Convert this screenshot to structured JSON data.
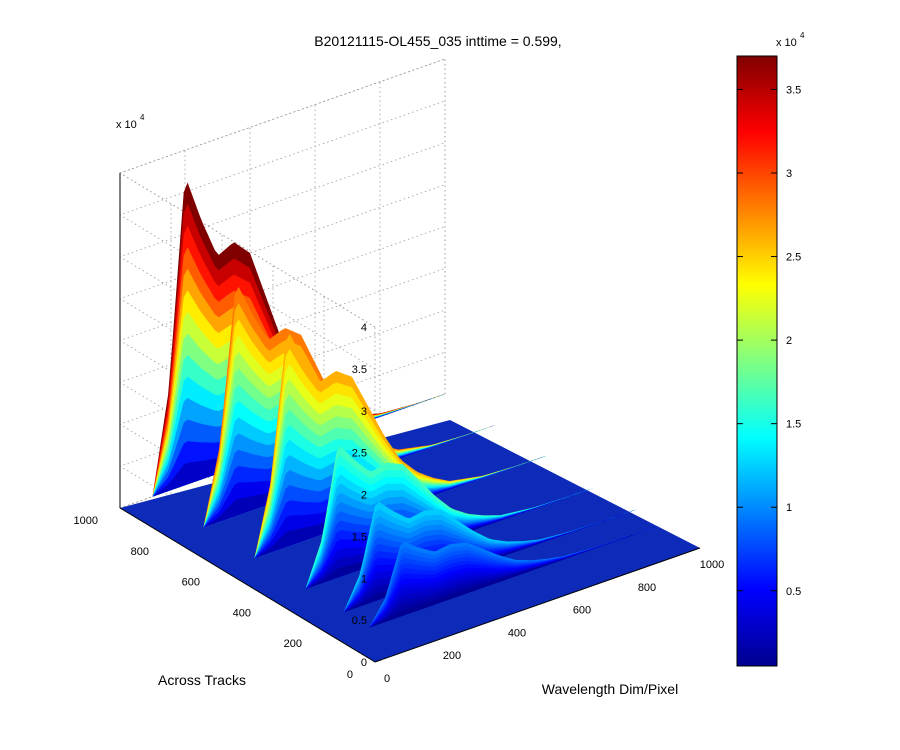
{
  "chart_data": {
    "type": "surface",
    "title": "B20121115-OL455_035 inttime = 0.599,",
    "xlabel": "Wavelength Dim/Pixel",
    "ylabel": "Across Tracks",
    "zlabel": "",
    "z_exponent": "x 10",
    "z_exponent_power": "4",
    "xlim": [
      0,
      1000
    ],
    "ylim": [
      0,
      1000
    ],
    "zlim": [
      0,
      40000
    ],
    "x_ticks": [
      "0",
      "200",
      "400",
      "600",
      "800",
      "1000"
    ],
    "y_ticks": [
      "0",
      "200",
      "400",
      "600",
      "800",
      "1000"
    ],
    "z_ticks": [
      "0",
      "0.5",
      "1",
      "1.5",
      "2",
      "2.5",
      "3",
      "3.5",
      "4"
    ],
    "grid": true,
    "colormap": "jet",
    "colorbar": {
      "exponent": "x 10",
      "exponent_power": "4",
      "range": [
        500,
        37000
      ],
      "ticks": [
        "0.5",
        "1",
        "1.5",
        "2",
        "2.5",
        "3",
        "3.5"
      ]
    },
    "spectral_profile": {
      "wavelength_pixels": [
        0,
        50,
        100,
        150,
        200,
        250,
        300,
        350,
        400,
        450,
        500,
        550,
        600,
        650,
        700,
        800,
        900,
        1000
      ],
      "peak_counts": [
        0,
        0,
        0,
        12000,
        37000,
        31000,
        26000,
        27000,
        25000,
        19000,
        13000,
        8000,
        5000,
        3000,
        1500,
        400,
        100,
        0
      ]
    },
    "ridges": [
      {
        "track_pixel": 1000,
        "peak_counts": 37000
      },
      {
        "track_pixel": 800,
        "peak_counts": 28000
      },
      {
        "track_pixel": 600,
        "peak_counts": 26000
      },
      {
        "track_pixel": 400,
        "peak_counts": 16000
      },
      {
        "track_pixel": 250,
        "peak_counts": 12000
      },
      {
        "track_pixel": 150,
        "peak_counts": 9000
      }
    ]
  }
}
